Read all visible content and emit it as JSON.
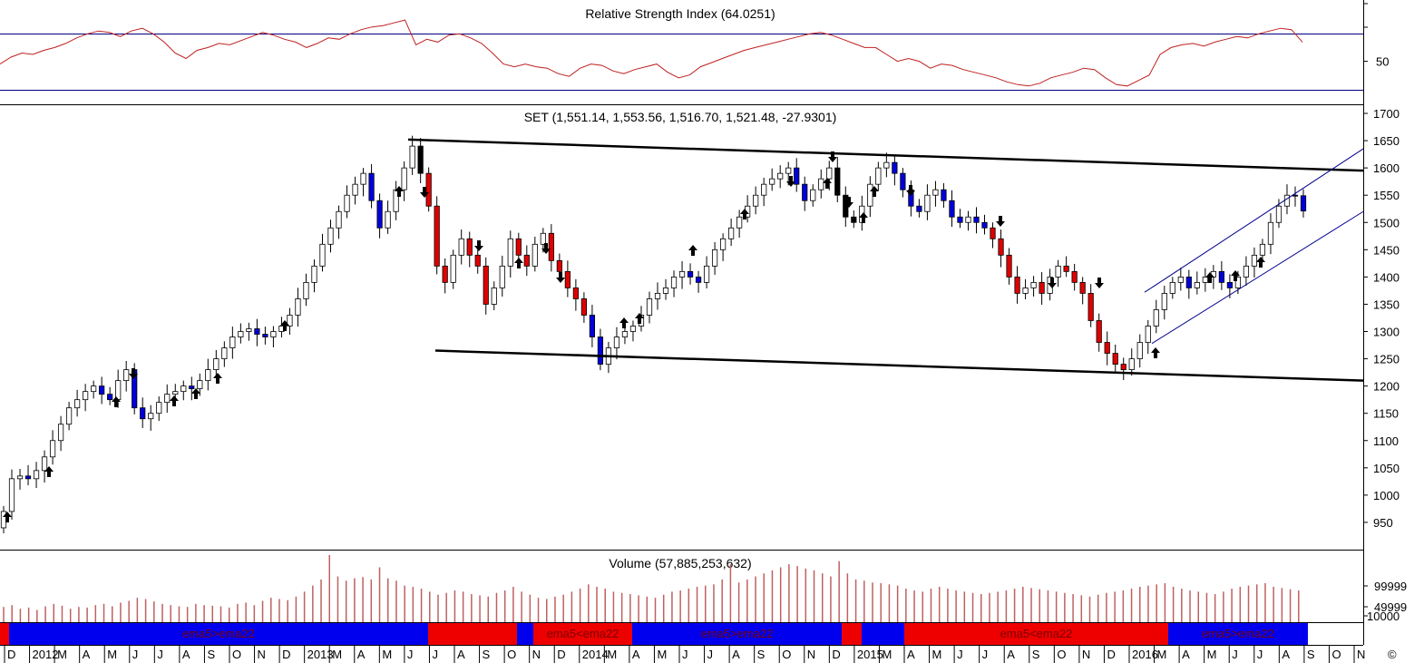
{
  "colors": {
    "up_candle": "#ffffff",
    "down_red": "#e00000",
    "down_blue": "#0000dd",
    "down_black": "#000000",
    "rsi_line": "#c02020",
    "rsi_bounds": "#000080",
    "volume_bar": "#c06060",
    "band_blue": "#0000ee",
    "band_red": "#ee0000"
  },
  "panels": {
    "rsi_title": "Relative Strength Index (64.0251)",
    "price_title": "SET (1,551.14, 1,553.56, 1,516.70, 1,521.48, -27.9301)",
    "volume_title": "Volume (57,885,253,632)"
  },
  "footer_glyph": "©",
  "chart_data": [
    {
      "type": "line",
      "name": "Relative Strength Index",
      "current": 64.0251,
      "y_tick_labels": [
        "50"
      ],
      "reference_lines": [
        70,
        30
      ],
      "values": [
        48,
        53,
        56,
        55,
        58,
        60,
        63,
        67,
        70,
        72,
        71,
        68,
        72,
        74,
        70,
        64,
        56,
        52,
        58,
        60,
        63,
        62,
        65,
        68,
        71,
        69,
        66,
        64,
        60,
        63,
        67,
        66,
        70,
        73,
        75,
        76,
        78,
        80,
        62,
        66,
        64,
        69,
        70,
        67,
        63,
        56,
        48,
        46,
        48,
        46,
        45,
        41,
        39,
        45,
        48,
        47,
        43,
        41,
        44,
        46,
        48,
        42,
        38,
        40,
        46,
        49,
        52,
        55,
        58,
        60,
        62,
        64,
        66,
        68,
        70,
        71,
        69,
        66,
        63,
        60,
        60,
        55,
        50,
        52,
        50,
        45,
        48,
        47,
        44,
        42,
        40,
        38,
        35,
        33,
        32,
        34,
        38,
        40,
        42,
        45,
        44,
        38,
        33,
        32,
        36,
        40,
        55,
        60,
        62,
        63,
        61,
        64,
        66,
        68,
        67,
        70,
        72,
        74,
        73,
        64
      ],
      "y_range": [
        22,
        88
      ]
    },
    {
      "type": "candlestick",
      "name": "SET",
      "last": {
        "open": 1551.14,
        "high": 1553.56,
        "low": 1516.7,
        "close": 1521.48,
        "change": -27.9301
      },
      "y_ticks": [
        950,
        1000,
        1050,
        1100,
        1150,
        1200,
        1250,
        1300,
        1350,
        1400,
        1450,
        1500,
        1550,
        1600,
        1650,
        1700
      ],
      "y_range": [
        900,
        1715
      ],
      "x_labels": [
        "D",
        "2012",
        "M",
        "A",
        "M",
        "J",
        "J",
        "A",
        "S",
        "O",
        "N",
        "D",
        "2013",
        "M",
        "A",
        "M",
        "J",
        "J",
        "A",
        "S",
        "O",
        "N",
        "D",
        "2014",
        "M",
        "A",
        "M",
        "J",
        "J",
        "A",
        "S",
        "O",
        "N",
        "D",
        "2015",
        "M",
        "A",
        "M",
        "J",
        "J",
        "A",
        "S",
        "O",
        "N",
        "D",
        "2016",
        "M",
        "A",
        "M",
        "J",
        "J",
        "A",
        "S",
        "O",
        "N"
      ],
      "closes": [
        970,
        1030,
        1035,
        1030,
        1045,
        1070,
        1100,
        1130,
        1160,
        1175,
        1190,
        1200,
        1185,
        1175,
        1210,
        1230,
        1160,
        1140,
        1150,
        1170,
        1185,
        1190,
        1200,
        1195,
        1210,
        1230,
        1250,
        1270,
        1290,
        1300,
        1305,
        1295,
        1290,
        1300,
        1310,
        1330,
        1360,
        1390,
        1420,
        1460,
        1490,
        1520,
        1550,
        1570,
        1590,
        1540,
        1490,
        1520,
        1560,
        1600,
        1640,
        1590,
        1530,
        1420,
        1390,
        1440,
        1470,
        1440,
        1420,
        1350,
        1380,
        1420,
        1470,
        1440,
        1420,
        1460,
        1480,
        1430,
        1410,
        1380,
        1360,
        1330,
        1290,
        1240,
        1270,
        1290,
        1300,
        1310,
        1330,
        1360,
        1370,
        1380,
        1400,
        1410,
        1400,
        1390,
        1420,
        1450,
        1470,
        1490,
        1510,
        1530,
        1550,
        1570,
        1580,
        1590,
        1600,
        1570,
        1540,
        1560,
        1580,
        1600,
        1550,
        1510,
        1500,
        1530,
        1570,
        1600,
        1610,
        1590,
        1560,
        1530,
        1520,
        1550,
        1560,
        1540,
        1510,
        1500,
        1510,
        1500,
        1490,
        1470,
        1440,
        1400,
        1370,
        1380,
        1390,
        1370,
        1400,
        1420,
        1410,
        1390,
        1370,
        1320,
        1280,
        1260,
        1240,
        1230,
        1250,
        1280,
        1310,
        1340,
        1370,
        1390,
        1400,
        1380,
        1390,
        1400,
        1410,
        1390,
        1380,
        1400,
        1420,
        1440,
        1460,
        1500,
        1530,
        1550,
        1549,
        1521
      ],
      "trendlines": [
        {
          "name": "upper resistance",
          "from": {
            "x": 450,
            "y": 1652
          },
          "to": {
            "x": 1503,
            "y": 1595
          }
        },
        {
          "name": "lower support",
          "from": {
            "x": 480,
            "y": 1265
          },
          "to": {
            "x": 1503,
            "y": 1210
          }
        },
        {
          "name": "channel top",
          "from": {
            "x": 1262,
            "y": 1372
          },
          "to": {
            "x": 1503,
            "y": 1635
          }
        },
        {
          "name": "channel bottom",
          "from": {
            "x": 1270,
            "y": 1278
          },
          "to": {
            "x": 1503,
            "y": 1520
          }
        }
      ]
    },
    {
      "type": "bar",
      "name": "Volume",
      "last": 57885253632,
      "y_tick_labels": [
        "99999",
        "49999",
        "10000"
      ],
      "values": [
        25,
        28,
        22,
        24,
        20,
        26,
        30,
        27,
        22,
        25,
        24,
        28,
        30,
        26,
        32,
        35,
        40,
        38,
        34,
        30,
        28,
        26,
        25,
        30,
        28,
        27,
        26,
        24,
        30,
        32,
        28,
        35,
        40,
        38,
        36,
        42,
        50,
        60,
        70,
        110,
        75,
        68,
        72,
        74,
        70,
        90,
        72,
        68,
        60,
        58,
        55,
        50,
        45,
        48,
        52,
        50,
        46,
        44,
        42,
        48,
        52,
        58,
        50,
        45,
        40,
        38,
        42,
        45,
        50,
        55,
        62,
        58,
        55,
        50,
        48,
        46,
        44,
        42,
        40,
        45,
        50,
        52,
        55,
        58,
        60,
        62,
        70,
        95,
        65,
        70,
        75,
        80,
        85,
        90,
        95,
        92,
        88,
        85,
        80,
        75,
        100,
        80,
        70,
        68,
        65,
        64,
        62,
        60,
        55,
        52,
        50,
        55,
        58,
        55,
        52,
        50,
        48,
        46,
        48,
        50,
        52,
        55,
        58,
        56,
        54,
        52,
        50,
        48,
        46,
        44,
        42,
        45,
        48,
        50,
        52,
        55,
        58,
        60,
        62,
        64,
        58,
        55,
        52,
        50,
        48,
        46,
        50,
        55,
        58,
        60,
        62,
        64,
        58,
        56,
        54,
        52
      ]
    },
    {
      "type": "bar",
      "name": "EMA state band",
      "segments": [
        {
          "label": "",
          "state": "red"
        },
        {
          "label": "ema5>ema22",
          "state": "blue"
        },
        {
          "label": "",
          "state": "red"
        },
        {
          "label": "",
          "state": "blue"
        },
        {
          "label": "ema5<ema22",
          "state": "red"
        },
        {
          "label": "ema5>ema22",
          "state": "blue"
        },
        {
          "label": "",
          "state": "red"
        },
        {
          "label": "",
          "state": "blue"
        },
        {
          "label": "ema5<ema22",
          "state": "red"
        },
        {
          "label": "ema5>ema22",
          "state": "blue"
        }
      ]
    }
  ]
}
